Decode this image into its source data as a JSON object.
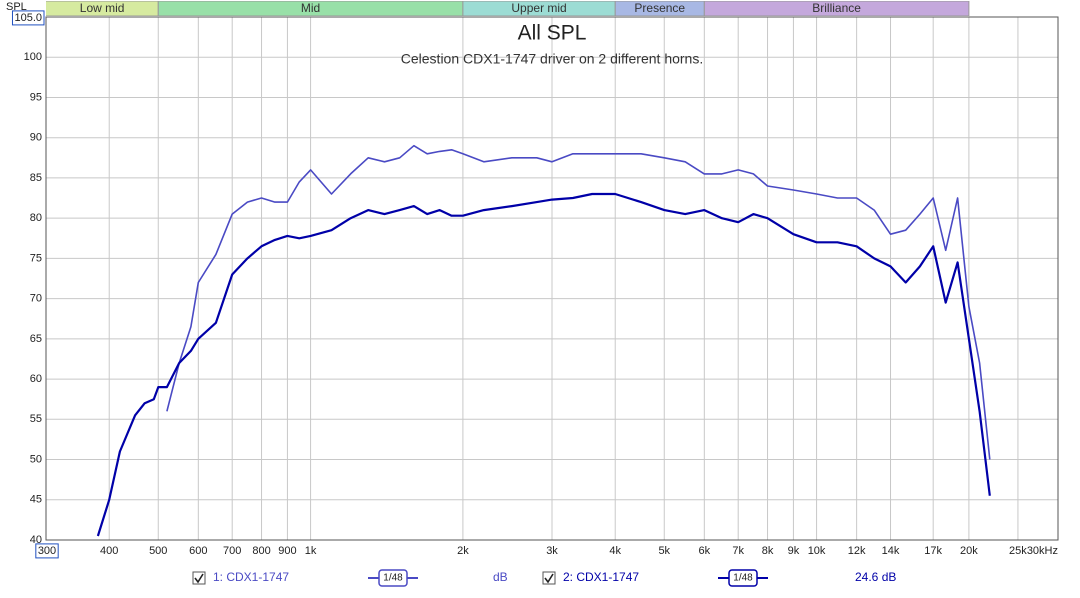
{
  "chart_data": {
    "type": "line",
    "title": "All SPL",
    "subtitle": "Celestion CDX1-1747 driver on 2 different horns.",
    "y_axis_label": "SPL",
    "log_x": true,
    "grid": true,
    "xlim": [
      300,
      30000
    ],
    "ylim": [
      40,
      105
    ],
    "xticks": [
      300,
      400,
      500,
      600,
      700,
      800,
      900,
      {
        "value": 1000,
        "label": "1k"
      },
      {
        "value": 2000,
        "label": "2k"
      },
      {
        "value": 3000,
        "label": "3k"
      },
      {
        "value": 4000,
        "label": "4k"
      },
      {
        "value": 5000,
        "label": "5k"
      },
      {
        "value": 6000,
        "label": "6k"
      },
      {
        "value": 7000,
        "label": "7k"
      },
      {
        "value": 8000,
        "label": "8k"
      },
      {
        "value": 9000,
        "label": "9k"
      },
      {
        "value": 10000,
        "label": "10k"
      },
      {
        "value": 12000,
        "label": "12k"
      },
      {
        "value": 14000,
        "label": "14k"
      },
      {
        "value": 17000,
        "label": "17k"
      },
      {
        "value": 20000,
        "label": "20k"
      },
      {
        "value": 25000,
        "label": "25k"
      },
      {
        "value": 30000,
        "label": "30kHz"
      }
    ],
    "yticks": [
      40,
      45,
      50,
      55,
      60,
      65,
      70,
      75,
      80,
      85,
      90,
      95,
      100,
      {
        "value": 105,
        "label": "105.0"
      }
    ],
    "bands": [
      {
        "name": "Low mid",
        "from": 250,
        "to": 500,
        "color": "#d6eaa0"
      },
      {
        "name": "Mid",
        "from": 500,
        "to": 2000,
        "color": "#98e0a8"
      },
      {
        "name": "Upper mid",
        "from": 2000,
        "to": 4000,
        "color": "#9cdcd4"
      },
      {
        "name": "Presence",
        "from": 4000,
        "to": 6000,
        "color": "#a8b8e4"
      },
      {
        "name": "Brilliance",
        "from": 6000,
        "to": 20000,
        "color": "#c4a8dc"
      }
    ],
    "x": [
      380,
      400,
      420,
      450,
      470,
      490,
      500,
      520,
      550,
      580,
      600,
      650,
      700,
      750,
      800,
      850,
      900,
      950,
      1000,
      1100,
      1200,
      1300,
      1400,
      1500,
      1600,
      1700,
      1800,
      1900,
      2000,
      2200,
      2500,
      2800,
      3000,
      3300,
      3600,
      4000,
      4500,
      5000,
      5500,
      6000,
      6500,
      7000,
      7500,
      8000,
      9000,
      10000,
      11000,
      12000,
      13000,
      14000,
      15000,
      16000,
      17000,
      18000,
      19000,
      20000,
      21000,
      22000
    ],
    "series": [
      {
        "name": "1: CDX1-1747",
        "color": "#4a4ac4",
        "smoothing": "1/48",
        "offset_label": "dB",
        "values": [
          null,
          null,
          null,
          null,
          null,
          null,
          null,
          56,
          62,
          66.5,
          72,
          75.5,
          80.5,
          82,
          82.5,
          82,
          82,
          84.5,
          86,
          83,
          85.5,
          87.5,
          87,
          87.5,
          89,
          88,
          88.3,
          88.5,
          88,
          87,
          87.5,
          87.5,
          87,
          88,
          88,
          88,
          88,
          87.5,
          87,
          85.5,
          85.5,
          86,
          85.5,
          84,
          83.5,
          83,
          82.5,
          82.5,
          81,
          78,
          78.5,
          80.5,
          82.5,
          76,
          82.5,
          69,
          62,
          50
        ]
      },
      {
        "name": "2: CDX1-1747",
        "color": "#0000a8",
        "smoothing": "1/48",
        "offset_label": "24.6 dB",
        "values": [
          40.5,
          45,
          51,
          55.5,
          57,
          57.5,
          59,
          59,
          62,
          63.5,
          65,
          67,
          73,
          75,
          76.5,
          77.3,
          77.8,
          77.5,
          77.8,
          78.5,
          80,
          81,
          80.5,
          81,
          81.5,
          80.5,
          81,
          80.3,
          80.3,
          81,
          81.5,
          82,
          82.3,
          82.5,
          83,
          83,
          82,
          81,
          80.5,
          81,
          80,
          79.5,
          80.5,
          80,
          78,
          77,
          77,
          76.5,
          75,
          74,
          72,
          74,
          76.5,
          69.5,
          74.5,
          65,
          56,
          45.5
        ]
      }
    ]
  }
}
